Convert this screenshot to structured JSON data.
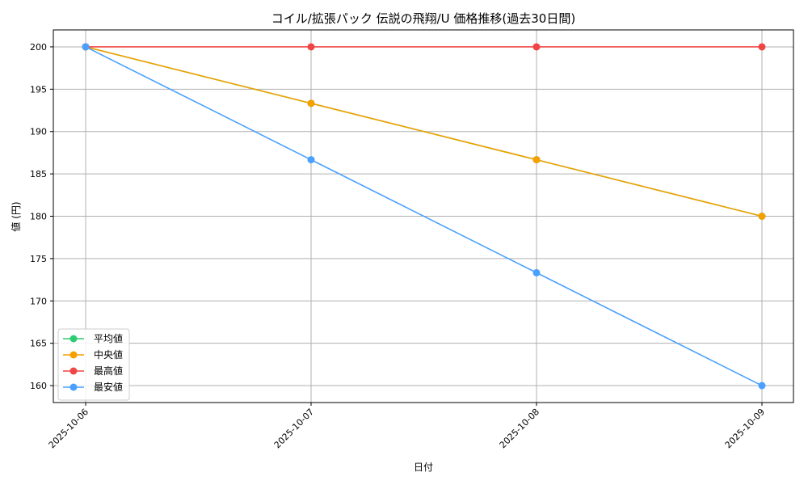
{
  "chart_data": {
    "type": "line",
    "title": "コイル/拡張パック 伝説の飛翔/U 価格推移(過去30日間)",
    "xlabel": "日付",
    "ylabel": "値 (円)",
    "x": [
      "2025-10-06",
      "2025-10-07",
      "2025-10-08",
      "2025-10-09"
    ],
    "ylim": [
      158,
      202
    ],
    "yticks": [
      160,
      165,
      170,
      175,
      180,
      185,
      190,
      195,
      200
    ],
    "grid": true,
    "legend_position": "lower-left",
    "series": [
      {
        "name": "平均値",
        "color": "#2ecc71",
        "values": [
          200,
          193.33,
          186.67,
          180
        ]
      },
      {
        "name": "中央値",
        "color": "#f5a000",
        "values": [
          200,
          193.33,
          186.67,
          180
        ]
      },
      {
        "name": "最高値",
        "color": "#f04545",
        "values": [
          200,
          200,
          200,
          200
        ]
      },
      {
        "name": "最安値",
        "color": "#4aa0ff",
        "values": [
          200,
          186.67,
          173.33,
          160
        ]
      }
    ]
  }
}
